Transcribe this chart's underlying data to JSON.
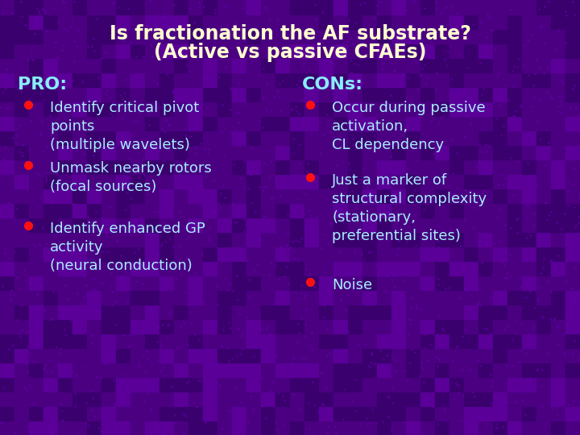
{
  "title_line1": "Is fractionation the AF substrate?",
  "title_line2": "(Active vs passive CFAEs)",
  "title_color": "#FFFFD0",
  "title_fontsize": 17,
  "background_color": "#4B0082",
  "pro_header": "PRO:",
  "con_header": "CONs:",
  "header_color": "#88EEFF",
  "header_fontsize": 16,
  "bullet_color": "#FF1111",
  "text_color": "#AAEEFF",
  "text_fontsize": 13,
  "pro_bullets": [
    "Identify critical pivot\npoints\n(multiple wavelets)",
    "Unmask nearby rotors\n(focal sources)",
    "Identify enhanced GP\nactivity\n(neural conduction)"
  ],
  "con_bullets": [
    "Occur during passive\nactivation,\nCL dependency",
    "Just a marker of\nstructural complexity\n(stationary,\npreferential sites)",
    "Noise"
  ],
  "figwidth": 7.2,
  "figheight": 5.4,
  "dpi": 100
}
